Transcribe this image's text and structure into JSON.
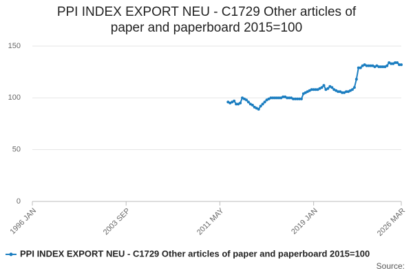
{
  "chart_data": {
    "type": "line",
    "title": "PPI INDEX EXPORT NEU - C1729 Other articles of paper and paperboard 2015=100",
    "source_label": "Source:",
    "xlim": [
      "1996 JAN",
      "2026 MAR"
    ],
    "xticks": [
      "1996 JAN",
      "2003 SEP",
      "2011 MAY",
      "2019 JAN",
      "2026 MAR"
    ],
    "ylim": [
      0,
      150
    ],
    "yticks": [
      0,
      50,
      100,
      150
    ],
    "grid": true,
    "series": [
      {
        "name": "PPI INDEX EXPORT NEU - C1729 Other articles of paper and paperboard 2015=100",
        "color": "#1a7dc0",
        "x": [
          "2012 JAN",
          "2012 MAR",
          "2012 MAY",
          "2012 JUL",
          "2012 SEP",
          "2012 NOV",
          "2013 JAN",
          "2013 MAR",
          "2013 MAY",
          "2013 JUL",
          "2013 SEP",
          "2013 NOV",
          "2014 JAN",
          "2014 MAR",
          "2014 MAY",
          "2014 JUL",
          "2014 SEP",
          "2014 NOV",
          "2015 JAN",
          "2015 MAR",
          "2015 MAY",
          "2015 JUL",
          "2015 SEP",
          "2015 NOV",
          "2016 JAN",
          "2016 MAR",
          "2016 MAY",
          "2016 JUL",
          "2016 SEP",
          "2016 NOV",
          "2017 JAN",
          "2017 MAR",
          "2017 MAY",
          "2017 JUL",
          "2017 SEP",
          "2017 NOV",
          "2018 JAN",
          "2018 MAR",
          "2018 MAY",
          "2018 JUL",
          "2018 SEP",
          "2018 NOV",
          "2019 JAN",
          "2019 MAR",
          "2019 MAY",
          "2019 JUL",
          "2019 SEP",
          "2019 NOV",
          "2020 JAN",
          "2020 MAR",
          "2020 MAY",
          "2020 JUL",
          "2020 SEP",
          "2020 NOV",
          "2021 JAN",
          "2021 MAR",
          "2021 MAY",
          "2021 JUL",
          "2021 SEP",
          "2021 NOV",
          "2022 JAN",
          "2022 MAR",
          "2022 MAY",
          "2022 JUL",
          "2022 SEP",
          "2022 NOV",
          "2023 JAN",
          "2023 MAR",
          "2023 MAY",
          "2023 JUL",
          "2023 SEP",
          "2023 NOV",
          "2024 JAN",
          "2024 MAR",
          "2024 MAY",
          "2024 JUL",
          "2024 SEP",
          "2024 NOV",
          "2025 JAN",
          "2025 MAR",
          "2025 MAY",
          "2025 JUL",
          "2025 SEP",
          "2025 NOV",
          "2026 JAN",
          "2026 MAR"
        ],
        "values": [
          96,
          95,
          96,
          97,
          94,
          94,
          95,
          100,
          99,
          98,
          96,
          94,
          93,
          91,
          90,
          89,
          92,
          94,
          96,
          98,
          99,
          100,
          100,
          100,
          100,
          100,
          100,
          101,
          101,
          100,
          100,
          100,
          99,
          99,
          99,
          99,
          99,
          104,
          105,
          106,
          107,
          108,
          108,
          108,
          108,
          109,
          110,
          112,
          108,
          109,
          111,
          110,
          108,
          107,
          106,
          106,
          105,
          105,
          106,
          106,
          107,
          108,
          110,
          118,
          129,
          129,
          131,
          132,
          131,
          131,
          131,
          131,
          130,
          131,
          130,
          130,
          130,
          130,
          131,
          134,
          133,
          133,
          134,
          134,
          132,
          132
        ]
      }
    ]
  }
}
